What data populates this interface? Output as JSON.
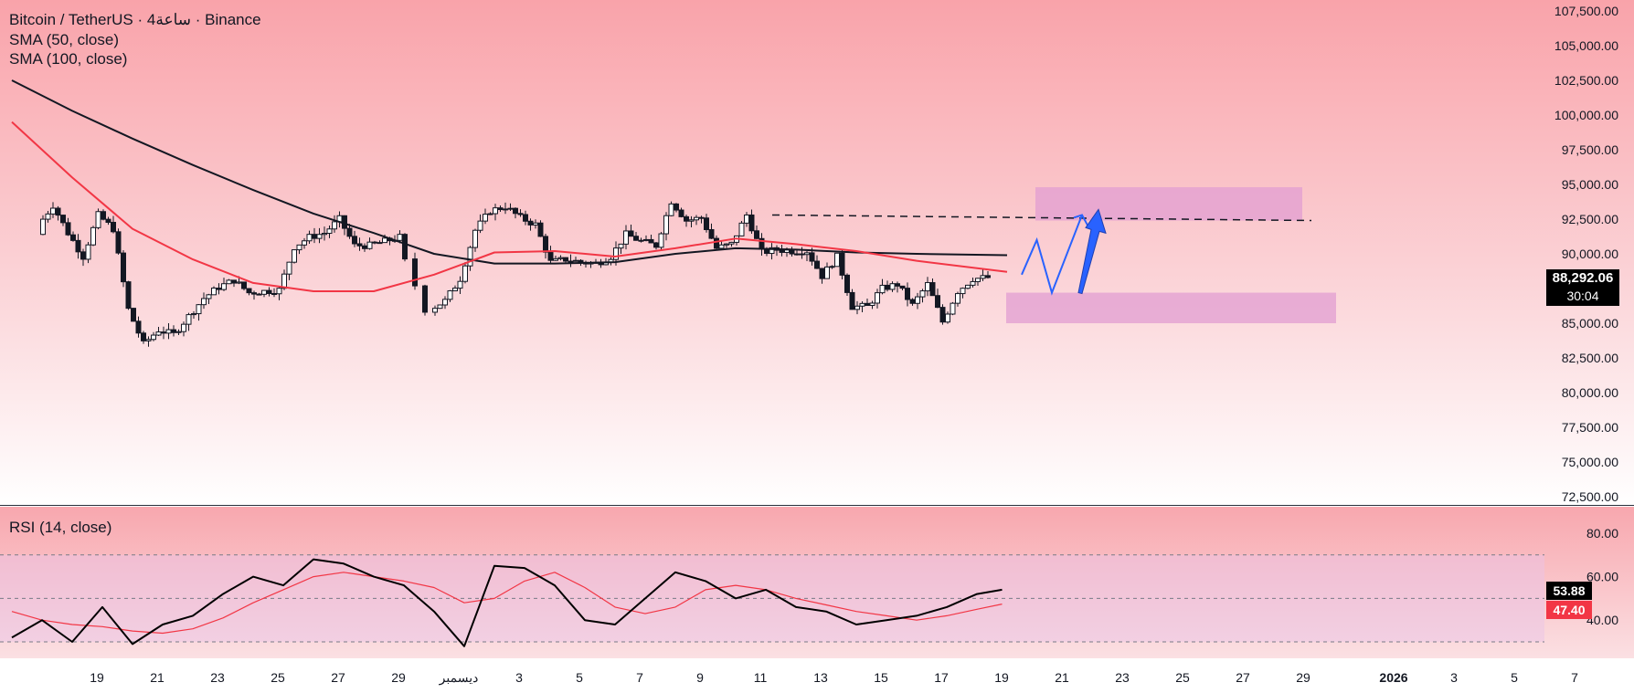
{
  "legend": {
    "symbol": "Bitcoin / TetherUS · 4ساعة · Binance",
    "sma50": "SMA (50, close)",
    "sma100": "SMA (100, close)",
    "rsi": "RSI (14, close)"
  },
  "last_price": {
    "price": "88,292.06",
    "countdown": "30:04"
  },
  "rsi_values": {
    "rsi": "53.88",
    "rsi_ma": "47.40"
  },
  "colors": {
    "candle": "#131722",
    "sma50": "#f23645",
    "sma100": "#131722",
    "rsi": "#000000",
    "rsi_ma": "#f23645",
    "zone": "#e19ed2",
    "projection": "#2962ff",
    "rsi_tag_bg": "#f23645"
  },
  "chart_data": [
    {
      "type": "candlestick",
      "title": "Bitcoin / TetherUS · 4ساعة · Binance",
      "y_ticks": [
        "107,500.00",
        "105,000.00",
        "102,500.00",
        "100,000.00",
        "97,500.00",
        "95,000.00",
        "92,500.00",
        "90,000.00",
        "85,000.00",
        "82,500.00",
        "80,000.00",
        "77,500.00",
        "75,000.00",
        "72,500.00"
      ],
      "ylim": [
        72500,
        107500
      ],
      "x_ticks": [
        "19",
        "21",
        "23",
        "25",
        "27",
        "29",
        "ديسمبر",
        "3",
        "5",
        "7",
        "9",
        "11",
        "13",
        "15",
        "17",
        "19",
        "21",
        "23",
        "25",
        "27",
        "29",
        "2026",
        "3",
        "5",
        "7"
      ],
      "ohlc_anchors_close": [
        [
          "Nov 18",
          92000
        ],
        [
          "Nov 18 12h",
          93500
        ],
        [
          "Nov 19",
          91500
        ],
        [
          "Nov 19 12h",
          89800
        ],
        [
          "Nov 20",
          92800
        ],
        [
          "Nov 20 12h",
          91800
        ],
        [
          "Nov 21",
          86000
        ],
        [
          "Nov 21 12h",
          83500
        ],
        [
          "Nov 22",
          84500
        ],
        [
          "Nov 22 12h",
          84200
        ],
        [
          "Nov 23",
          85500
        ],
        [
          "Nov 23 12h",
          86800
        ],
        [
          "Nov 24",
          87600
        ],
        [
          "Nov 24 12h",
          88100
        ],
        [
          "Nov 25",
          87200
        ],
        [
          "Nov 25 12h",
          87300
        ],
        [
          "Nov 26",
          87400
        ],
        [
          "Nov 26 12h",
          90500
        ],
        [
          "Nov 27",
          91200
        ],
        [
          "Nov 27 12h",
          91500
        ],
        [
          "Nov 28",
          92500
        ],
        [
          "Nov 28 12h",
          90600
        ],
        [
          "Nov 29",
          90600
        ],
        [
          "Nov 29 12h",
          90900
        ],
        [
          "Nov 30",
          91200
        ],
        [
          "Dec 1",
          86000
        ],
        [
          "Dec 1 12h",
          86600
        ],
        [
          "Dec 2",
          88200
        ],
        [
          "Dec 2 12h",
          91700
        ],
        [
          "Dec 3",
          93100
        ],
        [
          "Dec 3 12h",
          93400
        ],
        [
          "Dec 4",
          92600
        ],
        [
          "Dec 4 12h",
          92100
        ],
        [
          "Dec 5",
          89400
        ],
        [
          "Dec 5 12h",
          89600
        ],
        [
          "Dec 6",
          89400
        ],
        [
          "Dec 6 12h",
          89300
        ],
        [
          "Dec 7",
          89800
        ],
        [
          "Dec 7 12h",
          91400
        ],
        [
          "Dec 8",
          90900
        ],
        [
          "Dec 8 12h",
          90600
        ],
        [
          "Dec 9",
          93800
        ],
        [
          "Dec 9 12h",
          92400
        ],
        [
          "Dec 10",
          92600
        ],
        [
          "Dec 10 12h",
          90400
        ],
        [
          "Dec 11",
          90700
        ],
        [
          "Dec 11 12h",
          92800
        ],
        [
          "Dec 12",
          90100
        ],
        [
          "Dec 12 12h",
          90300
        ],
        [
          "Dec 13",
          90200
        ],
        [
          "Dec 13 12h",
          90200
        ],
        [
          "Dec 14",
          88400
        ],
        [
          "Dec 14 12h",
          89800
        ],
        [
          "Dec 15",
          86200
        ],
        [
          "Dec 15 12h",
          86200
        ],
        [
          "Dec 16",
          87500
        ],
        [
          "Dec 16 12h",
          87800
        ],
        [
          "Dec 17",
          86300
        ],
        [
          "Dec 17 12h",
          87800
        ],
        [
          "Dec 18",
          85100
        ],
        [
          "Dec 18 12h",
          87300
        ],
        [
          "Dec 19",
          88200
        ],
        [
          "Dec 19 12h",
          88292.06
        ]
      ],
      "series": [
        {
          "name": "SMA (50, close)",
          "values": [
            99500,
            95500,
            91800,
            89600,
            87900,
            87300,
            87300,
            88500,
            90100,
            90200,
            89800,
            90400,
            91100,
            90700,
            90200,
            89500,
            88700
          ]
        },
        {
          "name": "SMA (100, close)",
          "values": [
            102500,
            100300,
            98300,
            96400,
            94600,
            92900,
            91500,
            90000,
            89300,
            89300,
            89400,
            90000,
            90400,
            90300,
            90100,
            90000,
            89900
          ]
        }
      ],
      "series_x": [
        "Nov 17",
        "Nov 19",
        "Nov 21",
        "Nov 23",
        "Nov 25",
        "Nov 27",
        "Nov 29",
        "Dec 1",
        "Dec 3",
        "Dec 5",
        "Dec 7",
        "Dec 9",
        "Dec 11",
        "Dec 13",
        "Dec 15",
        "Dec 17",
        "Dec 20"
      ],
      "annotations": {
        "resistance_line": {
          "from": "Dec 11",
          "to": "Dec 31",
          "value_start": 92800,
          "value_end": 92400,
          "style": "dashed"
        },
        "supply_zone": {
          "from": "Dec 20",
          "to": "Dec 29",
          "low": 92400,
          "high": 94800
        },
        "demand_zone": {
          "from": "Dec 19",
          "to": "Dec 31",
          "low": 85000,
          "high": 87200
        },
        "projection_path": [
          [
            "Dec 20",
            88500
          ],
          [
            "Dec 20 12h",
            91000
          ],
          [
            "Dec 21",
            87200
          ],
          [
            "Dec 22",
            92800
          ]
        ],
        "projection_arrow": [
          [
            "Dec 22",
            87200
          ],
          [
            "Dec 23",
            93200
          ]
        ]
      }
    },
    {
      "type": "line",
      "title": "RSI (14, close)",
      "y_ticks": [
        "80.00",
        "60.00",
        "40.00"
      ],
      "ylim": [
        27,
        85
      ],
      "band": [
        30,
        70
      ],
      "midline": 50,
      "x": [
        "Nov 17",
        "Nov 18",
        "Nov 19",
        "Nov 20",
        "Nov 21",
        "Nov 22",
        "Nov 23",
        "Nov 24",
        "Nov 25",
        "Nov 26",
        "Nov 27",
        "Nov 28",
        "Nov 29",
        "Nov 30",
        "Dec 1",
        "Dec 2",
        "Dec 3",
        "Dec 4",
        "Dec 5",
        "Dec 6",
        "Dec 7",
        "Dec 8",
        "Dec 9",
        "Dec 10",
        "Dec 11",
        "Dec 12",
        "Dec 13",
        "Dec 14",
        "Dec 15",
        "Dec 16",
        "Dec 17",
        "Dec 18",
        "Dec 19",
        "Dec 19 20h"
      ],
      "series": [
        {
          "name": "RSI",
          "values": [
            32,
            40,
            30,
            46,
            29,
            38,
            42,
            52,
            60,
            56,
            68,
            66,
            60,
            56,
            44,
            28,
            65,
            64,
            56,
            40,
            38,
            50,
            62,
            58,
            50,
            54,
            46,
            44,
            38,
            40,
            42,
            46,
            52,
            54
          ]
        },
        {
          "name": "RSI MA",
          "values": [
            44,
            40,
            38,
            37,
            35,
            34,
            36,
            41,
            48,
            54,
            60,
            62,
            60,
            58,
            55,
            48,
            50,
            58,
            62,
            55,
            46,
            43,
            46,
            54,
            56,
            54,
            50,
            47,
            44,
            42,
            40,
            42,
            45,
            47.4
          ]
        }
      ]
    }
  ]
}
